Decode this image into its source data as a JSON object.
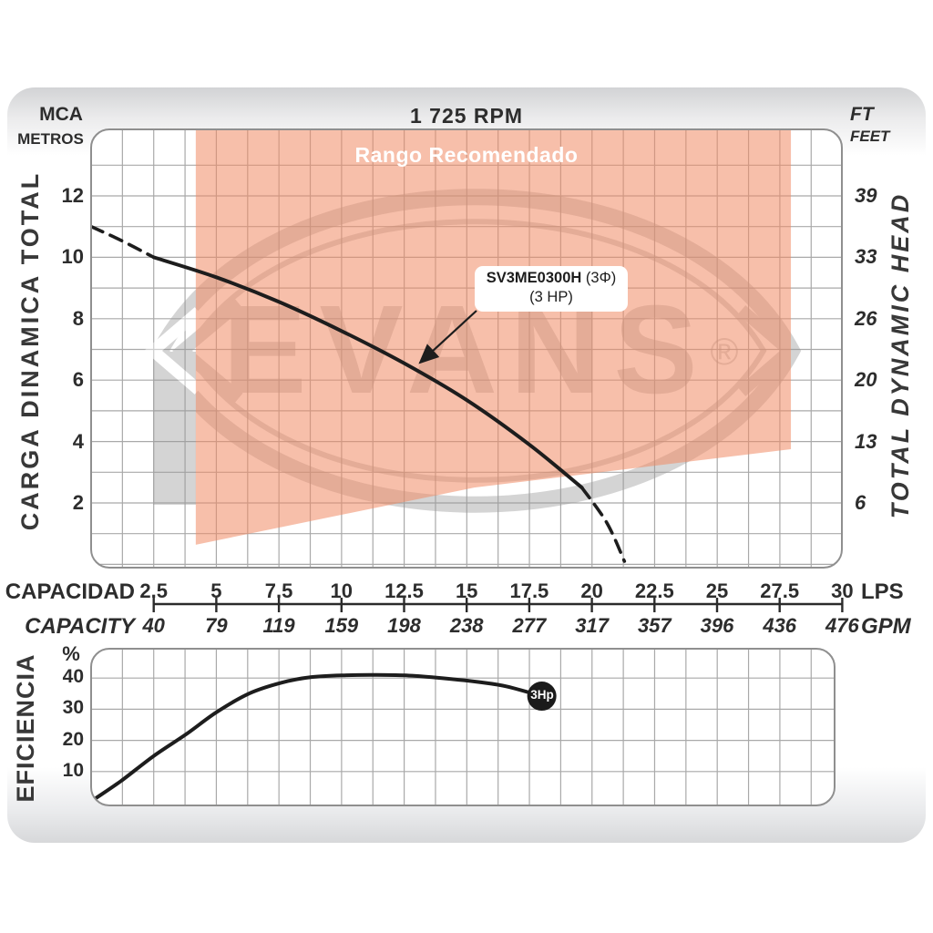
{
  "watermark": {
    "text": "EVANS",
    "registered": "®"
  },
  "chart_data": [
    {
      "type": "line",
      "name": "head-curve-chart",
      "title": "1 725 RPM",
      "ylabel_left": "CARGA  DINAMICA  TOTAL",
      "ylabel_right": "TOTAL  DYNAMIC  HEAD",
      "y_unit_left": {
        "top": "MCA",
        "bottom": "METROS"
      },
      "y_unit_right": {
        "top": "FT",
        "bottom": "FEET"
      },
      "y_ticks_mca": [
        12,
        10,
        8,
        6,
        4,
        2
      ],
      "y_ticks_ft": [
        39,
        33,
        26,
        20,
        13,
        6
      ],
      "ylim": [
        0,
        14.2
      ],
      "xlim": [
        0,
        30
      ],
      "grid": "on",
      "x_ticks_lps": [
        2.5,
        5,
        7.5,
        10,
        12.5,
        15,
        17.5,
        20,
        22.5,
        25,
        27.5,
        30
      ],
      "x_ticks_gpm": [
        40,
        79,
        119,
        159,
        198,
        238,
        277,
        317,
        357,
        396,
        436,
        476
      ],
      "x_axis_label_row1": {
        "left": "CAPACIDAD",
        "right": "LPS"
      },
      "x_axis_label_row2": {
        "left": "CAPACITY",
        "right": "GPM"
      },
      "curve_label": {
        "model": "SV3ME0300H",
        "phase": "(3Φ)",
        "power": "(3 HP)"
      },
      "recommended_range": {
        "label": "Rango Recomendado",
        "color": "#f08a64",
        "x_lps": [
          4.2,
          28.0
        ],
        "polygon_lps_mca": [
          [
            4.18,
            14.2
          ],
          [
            27.95,
            14.2
          ],
          [
            27.95,
            3.75
          ],
          [
            15.3,
            2.5
          ],
          [
            4.18,
            0.64
          ]
        ]
      },
      "series": [
        {
          "name": "head-dashed-lead-in",
          "style": "dashed",
          "points": [
            [
              0,
              11
            ],
            [
              1.2,
              10.55
            ],
            [
              2.5,
              10
            ]
          ]
        },
        {
          "name": "head-solid",
          "style": "solid",
          "points": [
            [
              2.5,
              10
            ],
            [
              5,
              9.35
            ],
            [
              7.5,
              8.55
            ],
            [
              10,
              7.6
            ],
            [
              12.5,
              6.55
            ],
            [
              15,
              5.35
            ],
            [
              17.5,
              3.9
            ],
            [
              19.6,
              2.5
            ]
          ]
        },
        {
          "name": "head-dashed-tail",
          "style": "dashed",
          "points": [
            [
              19.6,
              2.5
            ],
            [
              20.6,
              1.35
            ],
            [
              21.3,
              0.1
            ]
          ]
        }
      ]
    },
    {
      "type": "line",
      "name": "efficiency-chart",
      "ylabel": "EFICIENCIA",
      "y_unit": "%",
      "y_ticks": [
        40,
        30,
        20,
        10
      ],
      "ylim": [
        0,
        50
      ],
      "xlim": [
        0,
        30
      ],
      "grid": "on",
      "marker": {
        "label": "3Hp",
        "x_lps": 18,
        "y_pct": 34.2
      },
      "series": [
        {
          "name": "efficiency",
          "style": "solid",
          "points": [
            [
              0.2,
              1.5
            ],
            [
              1.2,
              7
            ],
            [
              2.5,
              15
            ],
            [
              3.8,
              22
            ],
            [
              5,
              29
            ],
            [
              6.3,
              35
            ],
            [
              7.6,
              38.5
            ],
            [
              8.8,
              40.3
            ],
            [
              10.2,
              40.9
            ],
            [
              11.4,
              41
            ],
            [
              12.7,
              40.8
            ],
            [
              14,
              40
            ],
            [
              15.5,
              38.7
            ],
            [
              16.6,
              37.3
            ],
            [
              18,
              34.2
            ]
          ]
        }
      ]
    }
  ]
}
